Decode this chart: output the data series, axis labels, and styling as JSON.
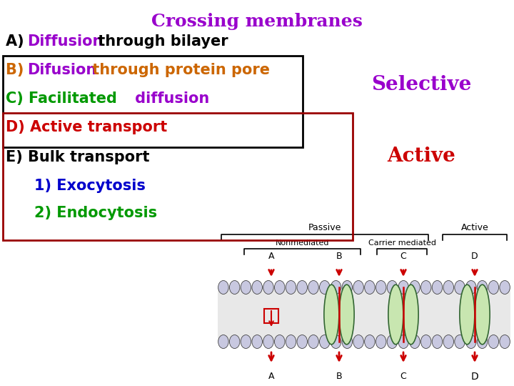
{
  "title": "Crossing membranes",
  "title_color": "#9900cc",
  "bg_color": "#ffffff",
  "line_A_prefix": "A) ",
  "line_A_prefix_color": "#000000",
  "line_A_word1": "Diffusion",
  "line_A_word1_color": "#9900cc",
  "line_A_rest": " through bilayer",
  "line_A_rest_color": "#000000",
  "line_B_prefix": "B) ",
  "line_B_prefix_color": "#cc6600",
  "line_B_word1": "Difusion",
  "line_B_word1_color": "#9900cc",
  "line_B_rest": " through protein pore",
  "line_B_rest_color": "#cc6600",
  "line_C_prefix": "C) ",
  "line_C_prefix_color": "#009900",
  "line_C_word1": "Facilitated",
  "line_C_word1_color": "#009900",
  "line_C_word2": " diffusion",
  "line_C_word2_color": "#9900cc",
  "line_D": "D) Active transport",
  "line_D_color": "#cc0000",
  "line_E": "E) Bulk transport",
  "line_E_color": "#000000",
  "line_1": "1) Exocytosis",
  "line_1_color": "#0000cc",
  "line_2": "2) Endocytosis",
  "line_2_color": "#009900",
  "selective_text": "Selective",
  "selective_color": "#9900cc",
  "active_text": "Active",
  "active_color": "#cc0000",
  "arrow_color": "#cc0000",
  "protein_color": "#c8e6b0",
  "lipid_head_color": "#c8c8e0",
  "lipid_tail_color": "#e8e8e8"
}
